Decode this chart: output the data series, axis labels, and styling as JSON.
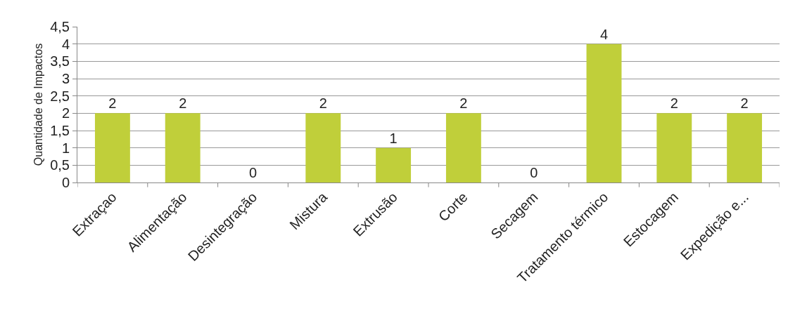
{
  "chart_data": {
    "type": "bar",
    "ylabel": "Quantidade de Impactos",
    "categories": [
      "Extraçao",
      "Alimentação",
      "Desintegração",
      "Mistura",
      "Extrusão",
      "Corte",
      "Secagem",
      "Tratamento térmico",
      "Estocagem",
      "Expedição e..."
    ],
    "values": [
      2,
      2,
      0,
      2,
      1,
      2,
      0,
      4,
      2,
      2
    ],
    "color": "#c0cf3a",
    "ylim": [
      0,
      4.5
    ],
    "yticks": [
      0,
      {
        "value": 0.5,
        "label": "0,5"
      },
      1,
      {
        "value": 1.5,
        "label": "1,5"
      },
      2,
      {
        "value": 2.5,
        "label": "2,5"
      },
      3,
      {
        "value": 3.5,
        "label": "3,5"
      },
      4,
      {
        "value": 4.5,
        "label": "4,5"
      }
    ],
    "grid": "y",
    "data_labels": true,
    "legend": false
  }
}
